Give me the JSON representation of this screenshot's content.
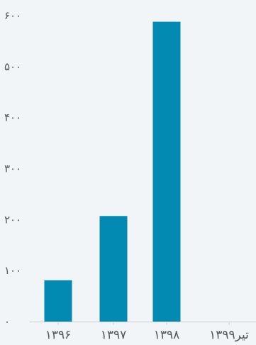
{
  "chart_data": {
    "type": "bar",
    "categories": [
      "۱۳۹۶",
      "۱۳۹۷",
      "۱۳۹۸",
      "تیر۱۳۹۹"
    ],
    "values": [
      81,
      207,
      588,
      0
    ],
    "ylim": [
      0,
      600
    ],
    "yticks": [
      0,
      100,
      200,
      300,
      400,
      500,
      600
    ],
    "ytick_labels": [
      "۰",
      "۱۰۰",
      "۲۰۰",
      "۳۰۰",
      "۴۰۰",
      "۵۰۰",
      "۶۰۰"
    ],
    "grid": false,
    "legend": "none",
    "bar_color": "#028ab2",
    "axis_color": "#c9d0d6",
    "background": "#f1f5f8"
  }
}
